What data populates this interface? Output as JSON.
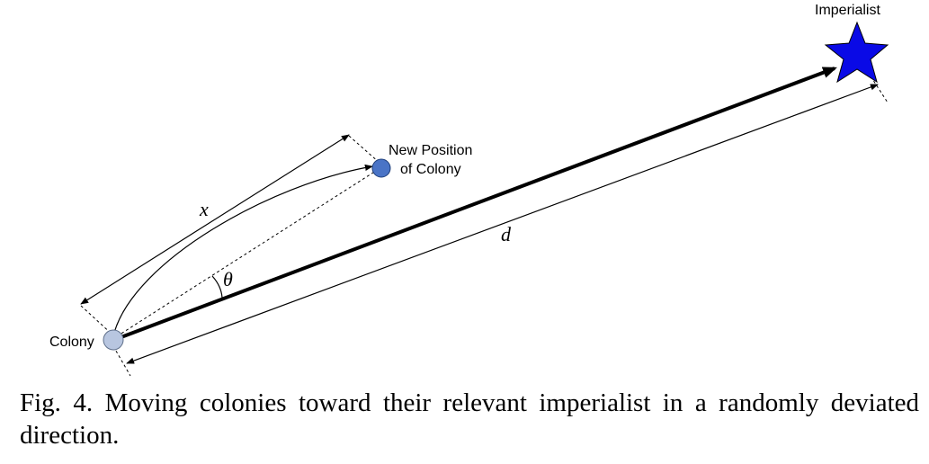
{
  "diagram": {
    "labels": {
      "imperialist": "Imperialist",
      "new_position_line1": "New Position",
      "new_position_line2": "of Colony",
      "colony": "Colony",
      "x": "x",
      "d": "d",
      "theta": "θ"
    },
    "colors": {
      "imperialist_star": "#0a0ae6",
      "new_position_dot": "#4a74c6",
      "colony_dot": "#b8c6e0",
      "line": "#000000"
    }
  },
  "caption": {
    "text": "Fig. 4. Moving colonies toward their relevant imperialist in a randomly deviated direction."
  }
}
